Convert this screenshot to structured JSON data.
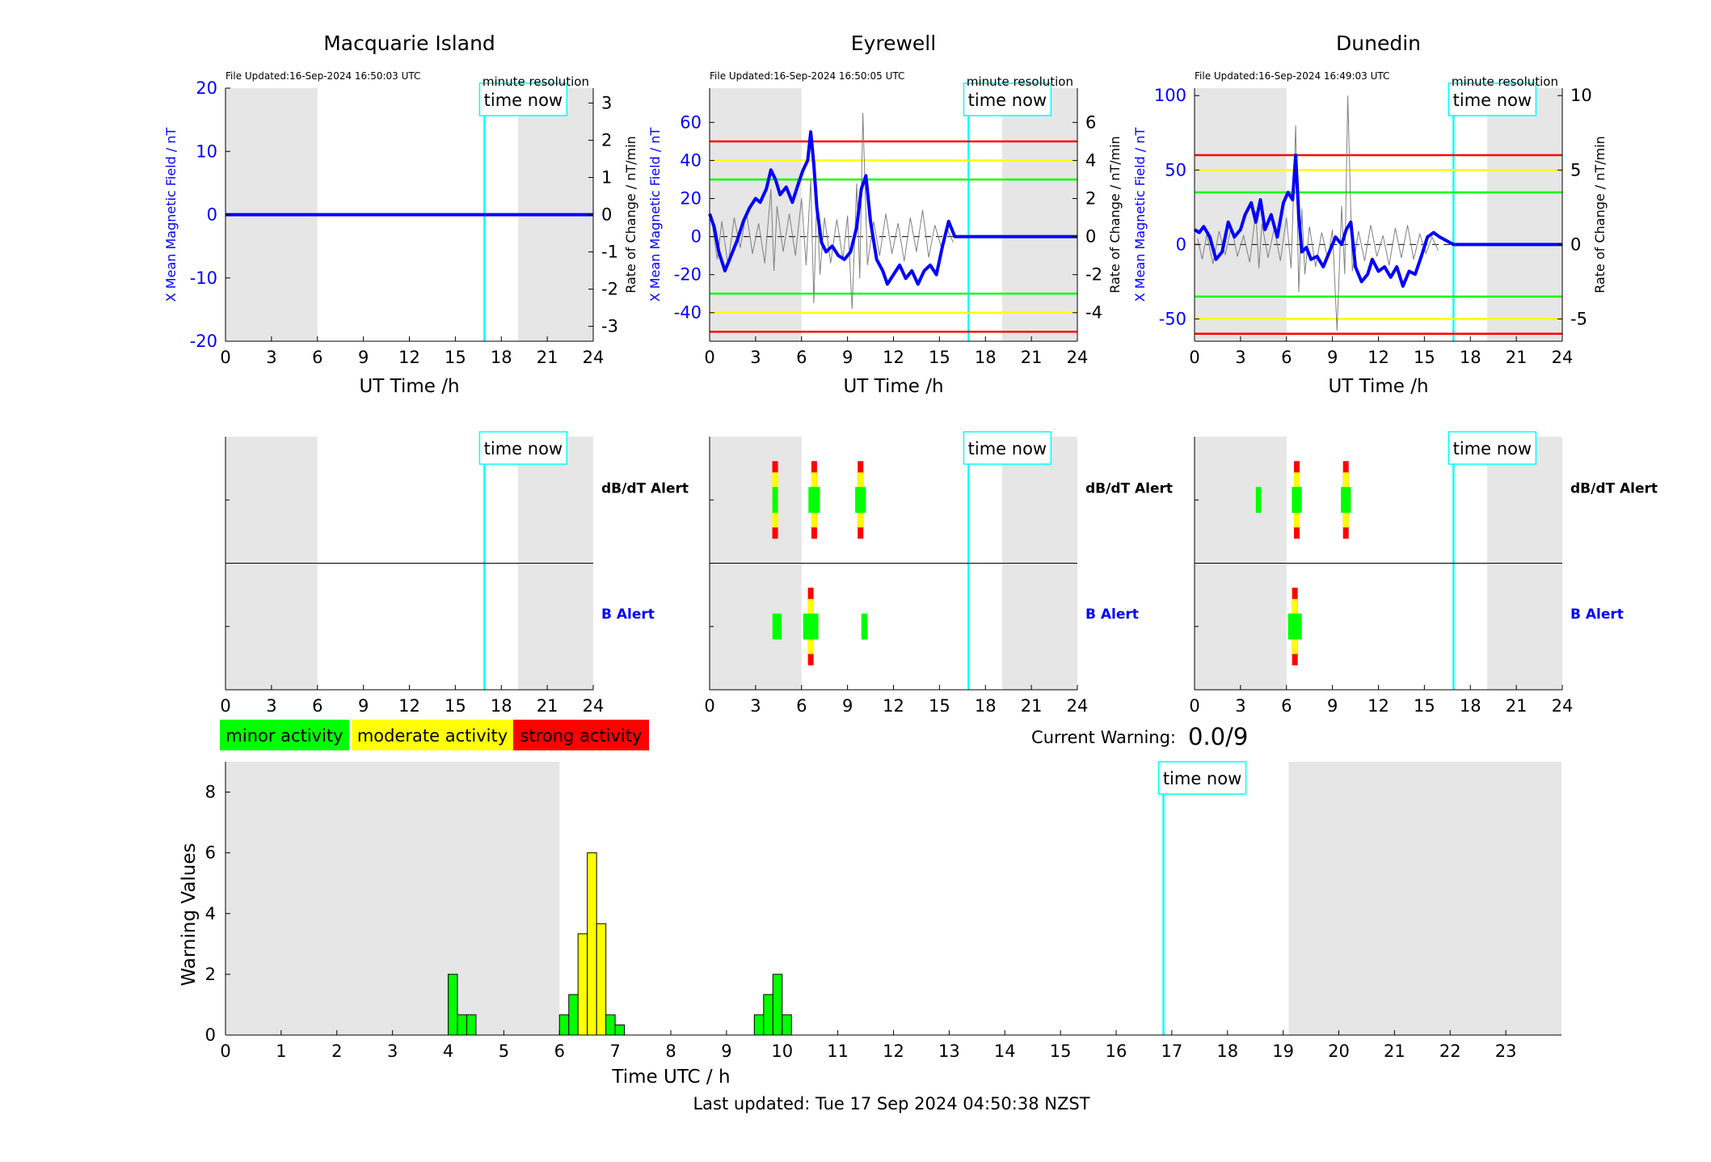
{
  "footer": "Last updated: Tue 17 Sep 2024 04:50:38 NZST",
  "current_warning": {
    "label": "Current Warning:",
    "value": "0.0/9"
  },
  "legend": [
    {
      "label": "minor activity",
      "color": "#00ff00"
    },
    {
      "label": "moderate activity",
      "color": "#ffff00"
    },
    {
      "label": "strong activity",
      "color": "#ff0000"
    }
  ],
  "colors": {
    "field": "#0000ff",
    "now_line": "#00ffff",
    "night": "#e6e6e6",
    "green": "#00ff00",
    "yellow": "#ffff00",
    "red": "#ff0000"
  },
  "chart_data": [
    {
      "type": "line",
      "title": "Macquarie Island",
      "file_updated": "File Updated:16-Sep-2024 16:50:03 UTC",
      "resolution": "minute resolution",
      "now_label": "time now",
      "now": 16.9,
      "night": [
        [
          0,
          6
        ],
        [
          19.1,
          24
        ]
      ],
      "xlabel": "UT Time /h",
      "ylabel": "X Mean Magnetic Field / nT",
      "ylabel2": "Rate of Change / nT/min",
      "xlim": [
        0,
        24
      ],
      "xticks": [
        0,
        3,
        6,
        9,
        12,
        15,
        18,
        21,
        24
      ],
      "ylim": [
        -20,
        20
      ],
      "yticks": [
        -20,
        -10,
        0,
        10,
        20
      ],
      "y2lim": [
        -3.4,
        3.4
      ],
      "y2ticks": [
        -3,
        -2,
        -1,
        0,
        1,
        2,
        3
      ],
      "thresholds": [],
      "series": [
        {
          "x": [
            0,
            24
          ],
          "y": [
            0,
            0
          ]
        }
      ],
      "rate": {
        "x": [],
        "y": []
      }
    },
    {
      "type": "line",
      "title": "Eyrewell",
      "file_updated": "File Updated:16-Sep-2024 16:50:05 UTC",
      "resolution": "minute resolution",
      "now_label": "time now",
      "now": 16.9,
      "night": [
        [
          0,
          6
        ],
        [
          19.1,
          24
        ]
      ],
      "xlabel": "UT Time /h",
      "ylabel": "X Mean Magnetic Field / nT",
      "ylabel2": "Rate of Change / nT/min",
      "xlim": [
        0,
        24
      ],
      "xticks": [
        0,
        3,
        6,
        9,
        12,
        15,
        18,
        21,
        24
      ],
      "ylim": [
        -55,
        78
      ],
      "yticks": [
        -40,
        -20,
        0,
        20,
        40,
        60
      ],
      "y2lim": [
        -5.5,
        7.8
      ],
      "y2ticks": [
        -4,
        -2,
        0,
        2,
        4,
        6
      ],
      "thresholds": [
        {
          "y": 50,
          "color": "red"
        },
        {
          "y": 40,
          "color": "yellow"
        },
        {
          "y": 30,
          "color": "green"
        },
        {
          "y": -30,
          "color": "green"
        },
        {
          "y": -40,
          "color": "yellow"
        },
        {
          "y": -50,
          "color": "red"
        }
      ],
      "series": [
        {
          "x": [
            0,
            0.3,
            0.6,
            1.0,
            1.4,
            1.8,
            2.2,
            2.6,
            3.0,
            3.3,
            3.7,
            4.0,
            4.3,
            4.6,
            5.0,
            5.4,
            5.8,
            6.1,
            6.4,
            6.6,
            6.8,
            7.0,
            7.3,
            7.6,
            8.0,
            8.4,
            8.8,
            9.2,
            9.6,
            9.9,
            10.2,
            10.5,
            10.9,
            11.3,
            11.6,
            12.0,
            12.4,
            12.8,
            13.2,
            13.6,
            14.0,
            14.4,
            14.8,
            15.2,
            15.6,
            16.0,
            16.9,
            24
          ],
          "y": [
            12,
            5,
            -8,
            -18,
            -10,
            -2,
            8,
            15,
            20,
            18,
            25,
            35,
            30,
            22,
            26,
            18,
            28,
            35,
            40,
            55,
            38,
            15,
            -3,
            -8,
            -5,
            -10,
            -12,
            -8,
            5,
            25,
            32,
            8,
            -12,
            -18,
            -25,
            -20,
            -15,
            -22,
            -18,
            -25,
            -18,
            -15,
            -20,
            -5,
            8,
            0,
            0,
            0
          ]
        }
      ],
      "rate": {
        "x": [
          0.2,
          0.5,
          0.8,
          1.2,
          1.6,
          2.0,
          2.4,
          2.8,
          3.2,
          3.6,
          4.0,
          4.2,
          4.4,
          4.8,
          5.2,
          5.6,
          6.0,
          6.3,
          6.6,
          6.8,
          7.0,
          7.2,
          7.5,
          7.9,
          8.3,
          8.7,
          9.0,
          9.3,
          9.6,
          9.8,
          10.0,
          10.3,
          10.7,
          11.1,
          11.5,
          11.9,
          12.3,
          12.7,
          13.1,
          13.5,
          13.9,
          14.3,
          14.7,
          15.1,
          15.5,
          15.9
        ],
        "y": [
          0.5,
          -1.2,
          0.8,
          -1.5,
          1.0,
          -0.6,
          1.3,
          -0.9,
          0.7,
          -1.4,
          2.5,
          -1.8,
          1.6,
          -0.8,
          1.2,
          -1.0,
          2.0,
          -1.5,
          3.0,
          -3.5,
          2.2,
          -2.0,
          1.0,
          -1.4,
          0.9,
          -1.2,
          1.1,
          -3.8,
          2.8,
          -2.2,
          6.5,
          -1.5,
          0.8,
          -1.0,
          1.2,
          -0.9,
          0.7,
          -1.3,
          1.0,
          -0.8,
          1.4,
          -1.1,
          0.6,
          -0.5,
          0.4,
          -0.3
        ]
      }
    },
    {
      "type": "line",
      "title": "Dunedin",
      "file_updated": "File Updated:16-Sep-2024 16:49:03 UTC",
      "resolution": "minute resolution",
      "now_label": "time now",
      "now": 16.9,
      "night": [
        [
          0,
          6
        ],
        [
          19.1,
          24
        ]
      ],
      "xlabel": "UT Time /h",
      "ylabel": "X Mean Magnetic Field / nT",
      "ylabel2": "Rate of Change / nT/min",
      "xlim": [
        0,
        24
      ],
      "xticks": [
        0,
        3,
        6,
        9,
        12,
        15,
        18,
        21,
        24
      ],
      "ylim": [
        -65,
        105
      ],
      "yticks": [
        -50,
        0,
        50,
        100
      ],
      "y2lim": [
        -6.5,
        10.5
      ],
      "y2ticks": [
        -5,
        0,
        5,
        10
      ],
      "thresholds": [
        {
          "y": 60,
          "color": "red"
        },
        {
          "y": 50,
          "color": "yellow"
        },
        {
          "y": 35,
          "color": "green"
        },
        {
          "y": -35,
          "color": "green"
        },
        {
          "y": -50,
          "color": "yellow"
        },
        {
          "y": -60,
          "color": "red"
        }
      ],
      "series": [
        {
          "x": [
            0,
            0.3,
            0.6,
            1.0,
            1.4,
            1.8,
            2.2,
            2.6,
            3.0,
            3.3,
            3.7,
            4.0,
            4.3,
            4.6,
            5.0,
            5.4,
            5.8,
            6.1,
            6.4,
            6.6,
            6.8,
            7.0,
            7.3,
            7.6,
            8.0,
            8.4,
            8.8,
            9.2,
            9.6,
            9.9,
            10.2,
            10.5,
            10.9,
            11.3,
            11.6,
            12.0,
            12.4,
            12.8,
            13.2,
            13.6,
            14.0,
            14.4,
            14.8,
            15.2,
            15.6,
            16.0,
            16.9,
            24
          ],
          "y": [
            10,
            8,
            12,
            5,
            -10,
            -5,
            15,
            5,
            10,
            20,
            28,
            15,
            30,
            10,
            20,
            5,
            28,
            35,
            30,
            60,
            20,
            -5,
            -2,
            -10,
            -8,
            -15,
            -5,
            5,
            0,
            10,
            15,
            -15,
            -25,
            -20,
            -10,
            -18,
            -15,
            -22,
            -15,
            -28,
            -18,
            -20,
            -8,
            5,
            8,
            5,
            0,
            0
          ]
        }
      ],
      "rate": {
        "x": [
          0.2,
          0.5,
          0.8,
          1.2,
          1.6,
          2.0,
          2.4,
          2.8,
          3.2,
          3.6,
          4.0,
          4.2,
          4.4,
          4.8,
          5.2,
          5.6,
          6.0,
          6.3,
          6.6,
          6.8,
          7.0,
          7.2,
          7.5,
          7.9,
          8.3,
          8.7,
          9.0,
          9.3,
          9.6,
          9.8,
          10.0,
          10.3,
          10.7,
          11.1,
          11.5,
          11.9,
          12.3,
          12.7,
          13.1,
          13.5,
          13.9,
          14.3,
          14.7,
          15.1,
          15.5,
          15.9
        ],
        "y": [
          0.4,
          -1.0,
          0.7,
          -1.3,
          0.9,
          -0.7,
          1.2,
          -0.8,
          0.6,
          -1.2,
          2.2,
          -1.6,
          1.4,
          -0.9,
          1.1,
          -1.1,
          1.8,
          -1.6,
          8.0,
          -3.2,
          2.4,
          -2.0,
          1.2,
          -1.5,
          0.8,
          -1.0,
          1.0,
          -5.8,
          2.6,
          -2.0,
          10.0,
          -1.8,
          0.9,
          -1.1,
          1.3,
          -0.8,
          0.6,
          -1.4,
          1.1,
          -0.9,
          1.3,
          -1.0,
          0.7,
          -0.6,
          0.5,
          -0.4
        ]
      }
    },
    {
      "type": "bar",
      "title": "",
      "now_label": "time now",
      "now": 16.9,
      "night": [
        [
          0,
          6
        ],
        [
          19.1,
          24
        ]
      ],
      "rows": [
        "dB/dT Alert",
        "B Alert"
      ],
      "xlim": [
        0,
        24
      ],
      "xticks": [
        0,
        3,
        6,
        9,
        12,
        15,
        18,
        21,
        24
      ],
      "alerts": {
        "dbdt": [],
        "b": []
      }
    },
    {
      "type": "bar",
      "title": "",
      "now_label": "time now",
      "now": 16.9,
      "night": [
        [
          0,
          6
        ],
        [
          19.1,
          24
        ]
      ],
      "rows": [
        "dB/dT Alert",
        "B Alert"
      ],
      "xlim": [
        0,
        24
      ],
      "xticks": [
        0,
        3,
        6,
        9,
        12,
        15,
        18,
        21,
        24
      ],
      "alerts": {
        "dbdt": [
          {
            "x0": 4.1,
            "x1": 4.45,
            "level": 3
          },
          {
            "x0": 6.45,
            "x1": 7.2,
            "level": 3
          },
          {
            "x0": 9.5,
            "x1": 10.2,
            "level": 3
          }
        ],
        "b": [
          {
            "x0": 4.1,
            "x1": 4.7,
            "level": 1
          },
          {
            "x0": 6.1,
            "x1": 7.1,
            "level": 3
          },
          {
            "x0": 9.9,
            "x1": 10.3,
            "level": 1
          }
        ]
      }
    },
    {
      "type": "bar",
      "title": "",
      "now_label": "time now",
      "now": 16.9,
      "night": [
        [
          0,
          6
        ],
        [
          19.1,
          24
        ]
      ],
      "rows": [
        "dB/dT Alert",
        "B Alert"
      ],
      "xlim": [
        0,
        24
      ],
      "xticks": [
        0,
        3,
        6,
        9,
        12,
        15,
        18,
        21,
        24
      ],
      "alerts": {
        "dbdt": [
          {
            "x0": 4.0,
            "x1": 4.35,
            "level": 1
          },
          {
            "x0": 6.35,
            "x1": 7.0,
            "level": 3
          },
          {
            "x0": 9.55,
            "x1": 10.2,
            "level": 3
          }
        ],
        "b": [
          {
            "x0": 6.1,
            "x1": 7.0,
            "level": 3
          }
        ]
      }
    },
    {
      "type": "bar",
      "title": "",
      "now_label": "time now",
      "now": 16.85,
      "night": [
        [
          0,
          6
        ],
        [
          19.1,
          24
        ]
      ],
      "xlabel": "Time UTC / h",
      "ylabel": "Warning Values",
      "xlim": [
        0,
        24
      ],
      "xticks": [
        0,
        1,
        2,
        3,
        4,
        5,
        6,
        7,
        8,
        9,
        10,
        11,
        12,
        13,
        14,
        15,
        16,
        17,
        18,
        19,
        20,
        21,
        22,
        23
      ],
      "ylim": [
        0,
        9
      ],
      "yticks": [
        0,
        2,
        4,
        6,
        8
      ],
      "bar_width": 0.1667,
      "bars": [
        {
          "x": 4.0,
          "value": 2,
          "level": "green"
        },
        {
          "x": 4.167,
          "value": 0.667,
          "level": "green"
        },
        {
          "x": 4.333,
          "value": 0.667,
          "level": "green"
        },
        {
          "x": 6.0,
          "value": 0.667,
          "level": "green"
        },
        {
          "x": 6.167,
          "value": 1.333,
          "level": "green"
        },
        {
          "x": 6.333,
          "value": 3.333,
          "level": "yellow"
        },
        {
          "x": 6.5,
          "value": 6,
          "level": "yellow"
        },
        {
          "x": 6.667,
          "value": 3.667,
          "level": "yellow"
        },
        {
          "x": 6.833,
          "value": 0.667,
          "level": "green"
        },
        {
          "x": 7.0,
          "value": 0.333,
          "level": "green"
        },
        {
          "x": 9.5,
          "value": 0.667,
          "level": "green"
        },
        {
          "x": 9.667,
          "value": 1.333,
          "level": "green"
        },
        {
          "x": 9.833,
          "value": 2,
          "level": "green"
        },
        {
          "x": 10.0,
          "value": 0.667,
          "level": "green"
        }
      ]
    }
  ]
}
